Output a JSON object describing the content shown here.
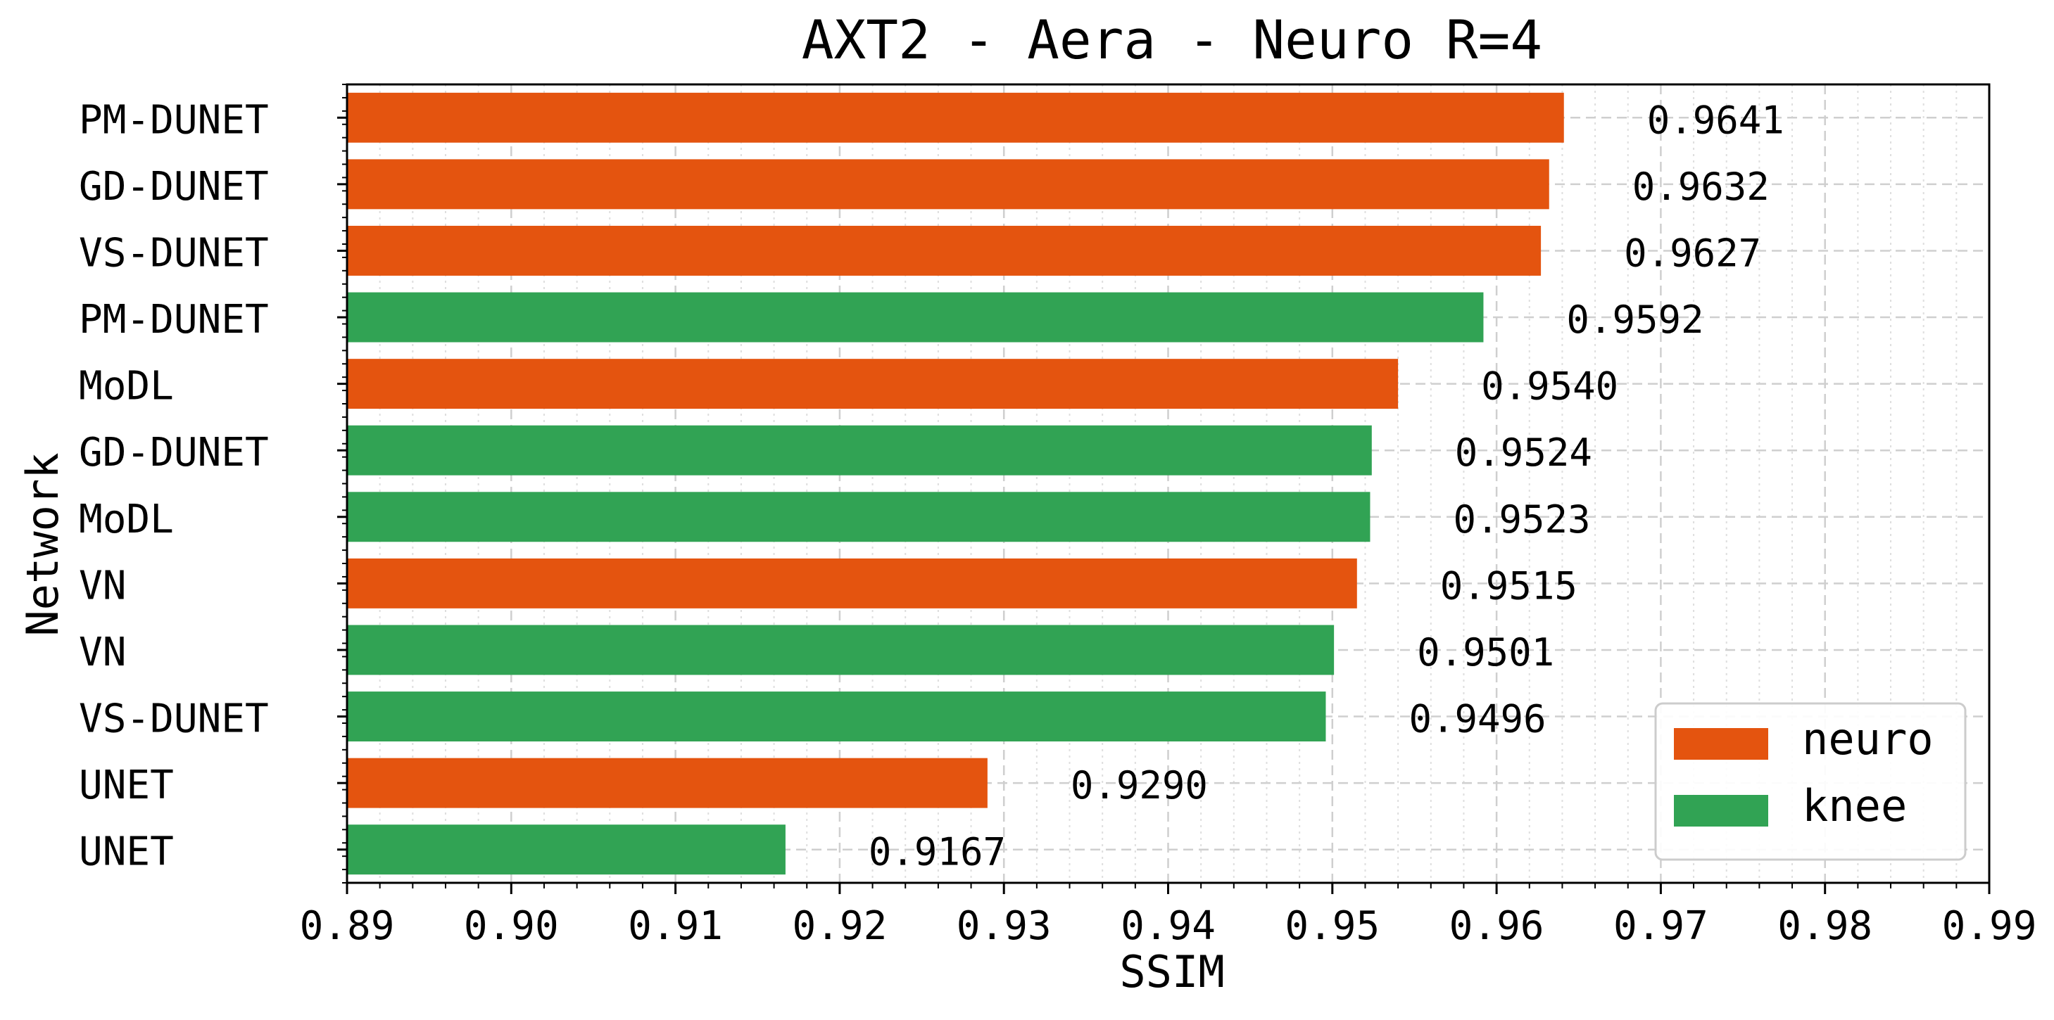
{
  "chart_data": {
    "type": "bar",
    "orientation": "horizontal",
    "title": "AXT2 - Aera - Neuro R=4",
    "xlabel": "SSIM",
    "ylabel": "Network",
    "xlim": [
      0.89,
      0.99
    ],
    "xticks": [
      "0.89",
      "0.90",
      "0.91",
      "0.92",
      "0.93",
      "0.94",
      "0.95",
      "0.96",
      "0.97",
      "0.98",
      "0.99"
    ],
    "grid": true,
    "legend_position": "bottom-right",
    "series_colors": {
      "neuro": "#e4540f",
      "knee": "#31a354"
    },
    "legend": [
      {
        "name": "neuro",
        "color": "#e4540f"
      },
      {
        "name": "knee",
        "color": "#31a354"
      }
    ],
    "bars": [
      {
        "category": "PM-DUNET",
        "series": "neuro",
        "value": 0.9641,
        "label": "0.9641"
      },
      {
        "category": "GD-DUNET",
        "series": "neuro",
        "value": 0.9632,
        "label": "0.9632"
      },
      {
        "category": "VS-DUNET",
        "series": "neuro",
        "value": 0.9627,
        "label": "0.9627"
      },
      {
        "category": "PM-DUNET",
        "series": "knee",
        "value": 0.9592,
        "label": "0.9592"
      },
      {
        "category": "MoDL",
        "series": "neuro",
        "value": 0.954,
        "label": "0.9540"
      },
      {
        "category": "GD-DUNET",
        "series": "knee",
        "value": 0.9524,
        "label": "0.9524"
      },
      {
        "category": "MoDL",
        "series": "knee",
        "value": 0.9523,
        "label": "0.9523"
      },
      {
        "category": "VN",
        "series": "neuro",
        "value": 0.9515,
        "label": "0.9515"
      },
      {
        "category": "VN",
        "series": "knee",
        "value": 0.9501,
        "label": "0.9501"
      },
      {
        "category": "VS-DUNET",
        "series": "knee",
        "value": 0.9496,
        "label": "0.9496"
      },
      {
        "category": "UNET",
        "series": "neuro",
        "value": 0.929,
        "label": "0.9290"
      },
      {
        "category": "UNET",
        "series": "knee",
        "value": 0.9167,
        "label": "0.9167"
      }
    ]
  }
}
